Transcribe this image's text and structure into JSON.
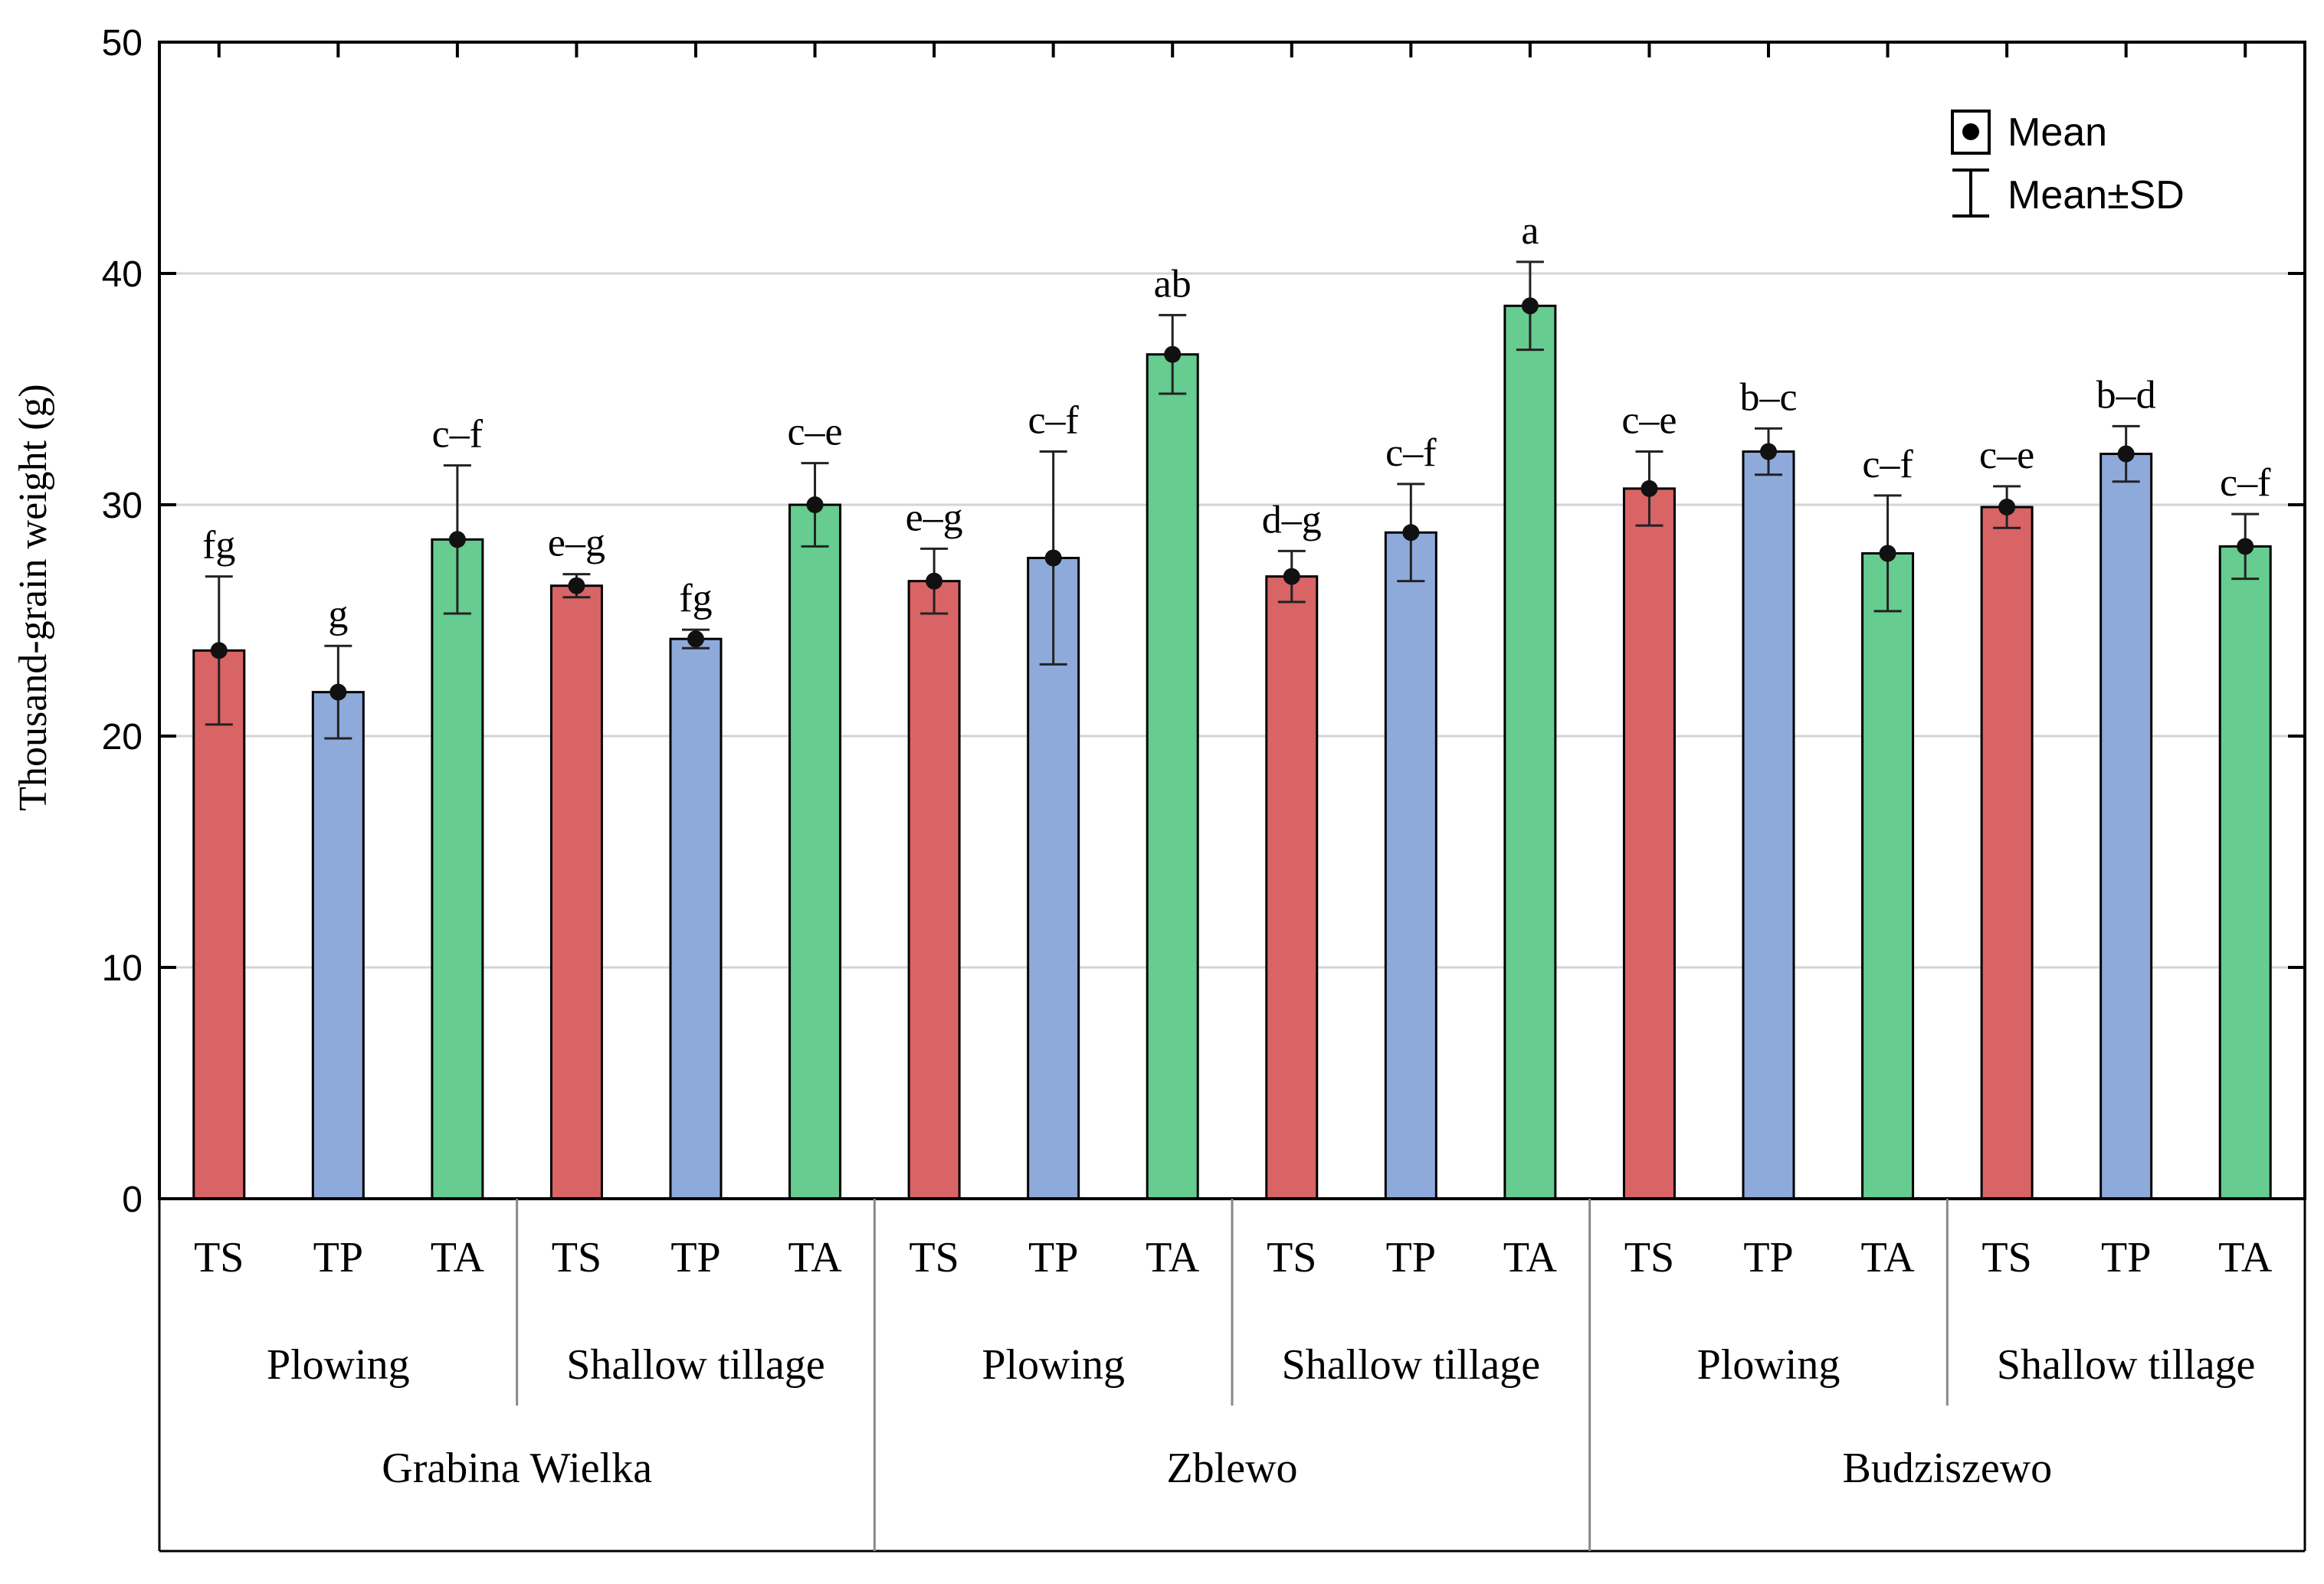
{
  "chart_data": {
    "type": "bar",
    "ylabel": "Thousand-grain weight (g)",
    "ylim": [
      0,
      50
    ],
    "yticks": [
      0,
      10,
      20,
      30,
      40,
      50
    ],
    "grid": true,
    "legend": {
      "placement": "top-right",
      "mean_label": "Mean",
      "sd_label": "Mean±SD"
    },
    "colors": {
      "TS": "#d96466",
      "TP": "#8eaadb",
      "TA": "#66cc8f"
    },
    "locations": [
      {
        "name": "Grabina Wielka",
        "tillage": [
          {
            "name": "Plowing",
            "bars": [
              {
                "cat": "TS",
                "mean": 23.7,
                "sd": 3.2,
                "sig": "fg"
              },
              {
                "cat": "TP",
                "mean": 21.9,
                "sd": 2.0,
                "sig": "g"
              },
              {
                "cat": "TA",
                "mean": 28.5,
                "sd": 3.2,
                "sig": "c–f"
              }
            ]
          },
          {
            "name": "Shallow tillage",
            "bars": [
              {
                "cat": "TS",
                "mean": 26.5,
                "sd": 0.5,
                "sig": "e–g"
              },
              {
                "cat": "TP",
                "mean": 24.2,
                "sd": 0.4,
                "sig": "fg"
              },
              {
                "cat": "TA",
                "mean": 30.0,
                "sd": 1.8,
                "sig": "c–e"
              }
            ]
          }
        ]
      },
      {
        "name": "Zblewo",
        "tillage": [
          {
            "name": "Plowing",
            "bars": [
              {
                "cat": "TS",
                "mean": 26.7,
                "sd": 1.4,
                "sig": "e–g"
              },
              {
                "cat": "TP",
                "mean": 27.7,
                "sd": 4.6,
                "sig": "c–f"
              },
              {
                "cat": "TA",
                "mean": 36.5,
                "sd": 1.7,
                "sig": "ab"
              }
            ]
          },
          {
            "name": "Shallow tillage",
            "bars": [
              {
                "cat": "TS",
                "mean": 26.9,
                "sd": 1.1,
                "sig": "d–g"
              },
              {
                "cat": "TP",
                "mean": 28.8,
                "sd": 2.1,
                "sig": "c–f"
              },
              {
                "cat": "TA",
                "mean": 38.6,
                "sd": 1.9,
                "sig": "a"
              }
            ]
          }
        ]
      },
      {
        "name": "Budziszewo",
        "tillage": [
          {
            "name": "Plowing",
            "bars": [
              {
                "cat": "TS",
                "mean": 30.7,
                "sd": 1.6,
                "sig": "c–e"
              },
              {
                "cat": "TP",
                "mean": 32.3,
                "sd": 1.0,
                "sig": "b–c"
              },
              {
                "cat": "TA",
                "mean": 27.9,
                "sd": 2.5,
                "sig": "c–f"
              }
            ]
          },
          {
            "name": "Shallow tillage",
            "bars": [
              {
                "cat": "TS",
                "mean": 29.9,
                "sd": 0.9,
                "sig": "c–e"
              },
              {
                "cat": "TP",
                "mean": 32.2,
                "sd": 1.2,
                "sig": "b–d"
              },
              {
                "cat": "TA",
                "mean": 28.2,
                "sd": 1.4,
                "sig": "c–f"
              }
            ]
          }
        ]
      }
    ]
  }
}
